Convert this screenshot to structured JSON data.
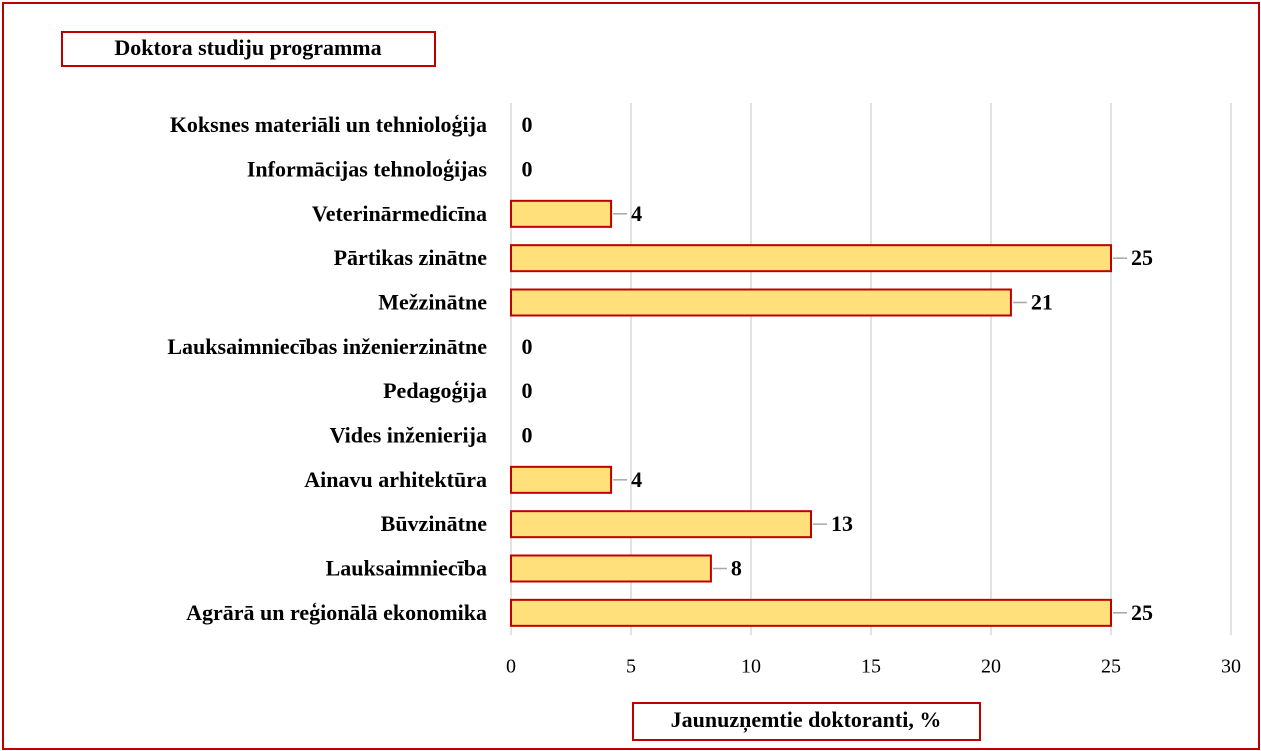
{
  "chart_data": {
    "type": "bar",
    "orientation": "horizontal",
    "title": "Doktora studiju programma",
    "x_label": "Jaunuzņemtie doktoranti, %",
    "categories": [
      "Koksnes materiāli un tehnioloģija",
      "Informācijas tehnoloģijas",
      "Veterinārmedicīna",
      "Pārtikas zinātne",
      "Mežzinātne",
      "Lauksaimniecības inženierzinātne",
      "Pedagoģija",
      "Vides inženierija",
      "Ainavu arhitektūra",
      "Būvzinātne",
      "Lauksaimniecība",
      "Agrārā un reģionālā ekonomika"
    ],
    "values": [
      0,
      0,
      4.17,
      25,
      20.83,
      0,
      0,
      0,
      4.17,
      12.5,
      8.33,
      25
    ],
    "value_labels": [
      "0",
      "0",
      "4",
      "25",
      "21",
      "0",
      "0",
      "0",
      "4",
      "13",
      "8",
      "25"
    ],
    "color": "#ffe07a",
    "edge_color": "#c00000",
    "xlim": [
      0,
      30
    ],
    "xticks": [
      0,
      5,
      10,
      15,
      20,
      25,
      30
    ],
    "grid": true
  }
}
